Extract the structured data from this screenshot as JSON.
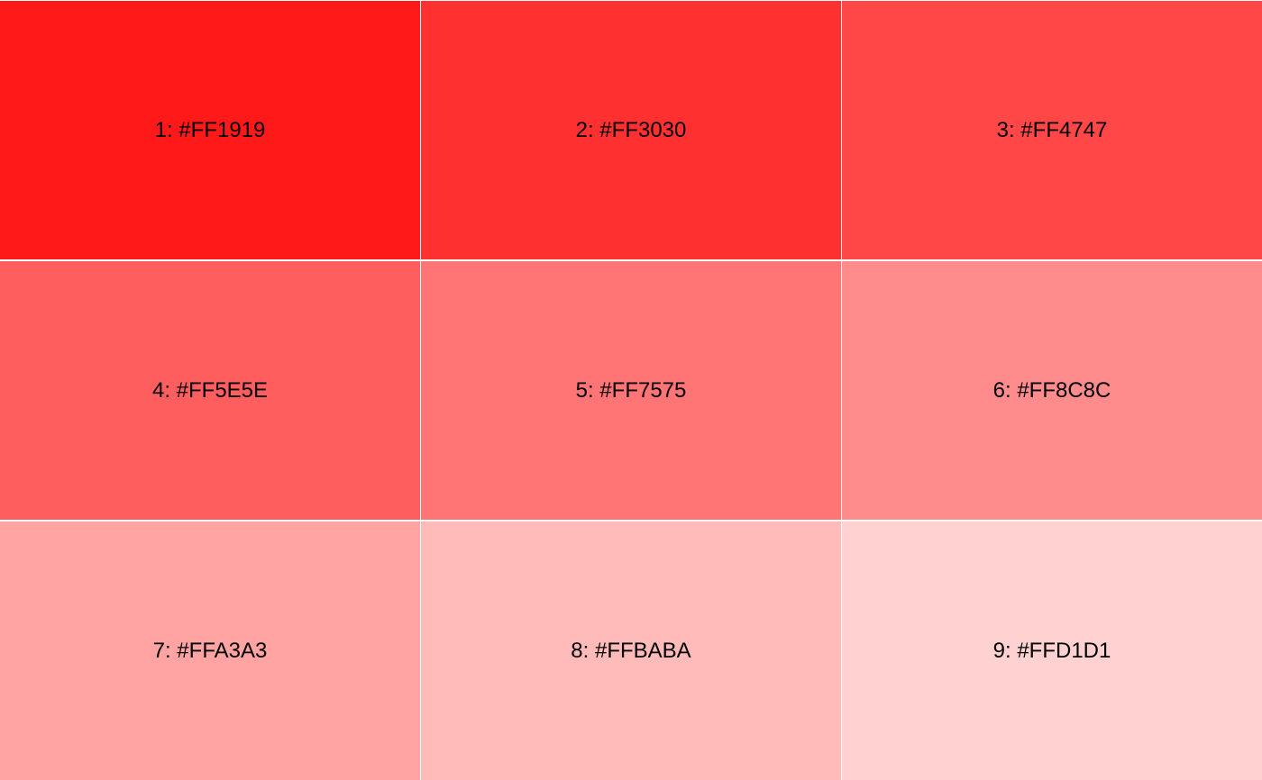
{
  "swatches": [
    {
      "label": "1: #FF1919",
      "color": "#FF1919"
    },
    {
      "label": "2: #FF3030",
      "color": "#FF3030"
    },
    {
      "label": "3: #FF4747",
      "color": "#FF4747"
    },
    {
      "label": "4: #FF5E5E",
      "color": "#FF5E5E"
    },
    {
      "label": "5: #FF7575",
      "color": "#FF7575"
    },
    {
      "label": "6: #FF8C8C",
      "color": "#FF8C8C"
    },
    {
      "label": "7: #FFA3A3",
      "color": "#FFA3A3"
    },
    {
      "label": "8: #FFBABA",
      "color": "#FFBABA"
    },
    {
      "label": "9: #FFD1D1",
      "color": "#FFD1D1"
    }
  ]
}
